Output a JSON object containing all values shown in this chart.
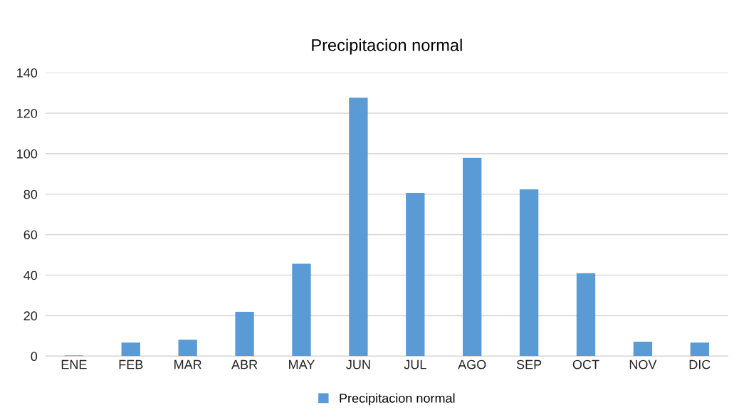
{
  "chart_data": {
    "type": "bar",
    "title": "Precipitacion normal",
    "categories": [
      "ENE",
      "FEB",
      "MAR",
      "ABR",
      "MAY",
      "JUN",
      "JUL",
      "AGO",
      "SEP",
      "OCT",
      "NOV",
      "DIC"
    ],
    "series": [
      {
        "name": "Precipitacion normal",
        "color": "#5b9bd5",
        "values": [
          0.4,
          6.7,
          8.1,
          21.9,
          45.6,
          127.6,
          80.6,
          97.9,
          82.4,
          41.0,
          7.1,
          6.7
        ]
      }
    ],
    "ylim": [
      0,
      140
    ],
    "yticks": [
      0,
      20,
      40,
      60,
      80,
      100,
      120,
      140
    ],
    "grid": "y",
    "legend": "bottom"
  }
}
